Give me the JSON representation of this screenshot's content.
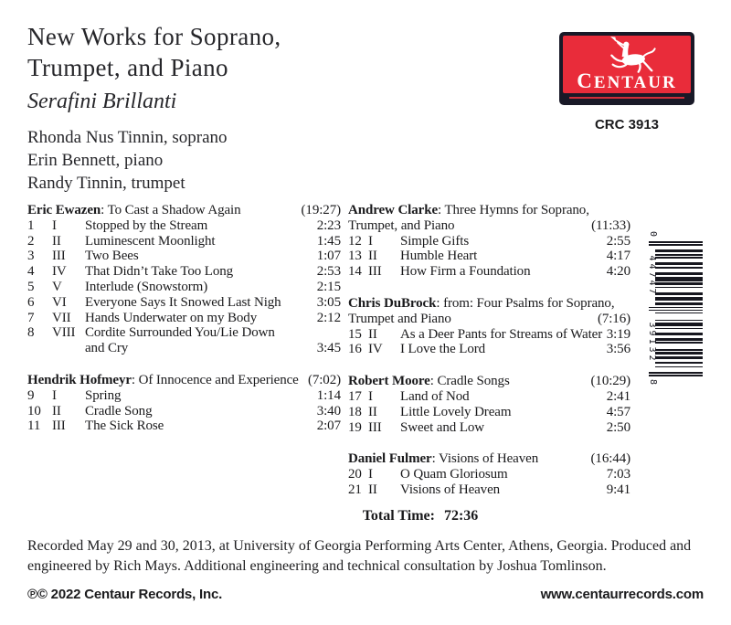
{
  "header": {
    "title_lines": [
      "New Works for Soprano,",
      "Trumpet, and Piano"
    ],
    "artist": "Serafini Brillanti",
    "performers": [
      "Rhonda Nus Tinnin, soprano",
      "Erin Bennett, piano",
      "Randy Tinnin, trumpet"
    ]
  },
  "label": {
    "wordmark": "CENTAUR",
    "catalog_number": "CRC 3913",
    "brand_red": "#e92c3a",
    "brand_navy": "#191927"
  },
  "barcode": {
    "digits": "044747391328",
    "left_digit": "0",
    "group1": "44747",
    "group2": "39132",
    "right_digit": "8"
  },
  "works": {
    "left": [
      {
        "composer": "Eric Ewazen",
        "title_rest": ": To Cast a Shadow Again",
        "title_line2": null,
        "duration": "(19:27)",
        "tracks": [
          {
            "n": "1",
            "m": "I",
            "t": "Stopped by the Stream",
            "d": "2:23"
          },
          {
            "n": "2",
            "m": "II",
            "t": "Luminescent Moonlight",
            "d": "1:45"
          },
          {
            "n": "3",
            "m": "III",
            "t": "Two Bees",
            "d": "1:07"
          },
          {
            "n": "4",
            "m": "IV",
            "t": "That Didn’t Take Too Long",
            "d": "2:53"
          },
          {
            "n": "5",
            "m": "V",
            "t": "Interlude (Snowstorm)",
            "d": "2:15"
          },
          {
            "n": "6",
            "m": "VI",
            "t": "Everyone Says It Snowed Last Nigh",
            "d": "3:05"
          },
          {
            "n": "7",
            "m": "VII",
            "t": "Hands Underwater on my Body",
            "d": "2:12"
          },
          {
            "n": "8",
            "m": "VIII",
            "t": "Cordite Surrounded You/Lie Down",
            "t2": "and Cry",
            "d": "3:45"
          }
        ]
      },
      {
        "composer": "Hendrik Hofmeyr",
        "title_rest": ": Of Innocence and Experience",
        "title_line2": null,
        "duration": "(7:02)",
        "tracks": [
          {
            "n": "9",
            "m": "I",
            "t": "Spring",
            "d": "1:14"
          },
          {
            "n": "10",
            "m": "II",
            "t": "Cradle Song",
            "d": "3:40"
          },
          {
            "n": "11",
            "m": "III",
            "t": "The Sick Rose",
            "d": "2:07"
          }
        ]
      }
    ],
    "right": [
      {
        "composer": "Andrew Clarke",
        "title_rest": ": Three Hymns for Soprano,",
        "title_line2": "Trumpet, and Piano",
        "duration": "(11:33)",
        "tracks": [
          {
            "n": "12",
            "m": "I",
            "t": "Simple Gifts",
            "d": "2:55"
          },
          {
            "n": "13",
            "m": "II",
            "t": "Humble Heart",
            "d": "4:17"
          },
          {
            "n": "14",
            "m": "III",
            "t": "How Firm a Foundation",
            "d": "4:20"
          }
        ]
      },
      {
        "composer": "Chris DuBrock",
        "title_rest": ": from: Four Psalms for Soprano,",
        "title_line2": "Trumpet and Piano",
        "duration": "(7:16)",
        "tracks": [
          {
            "n": "15",
            "m": "II",
            "t": "As a Deer Pants for Streams of Water",
            "d": "3:19"
          },
          {
            "n": "16",
            "m": "IV",
            "t": "I Love the Lord",
            "d": "3:56"
          }
        ]
      },
      {
        "composer": "Robert Moore",
        "title_rest": ": Cradle Songs",
        "title_line2": null,
        "duration": "(10:29)",
        "tracks": [
          {
            "n": "17",
            "m": "I",
            "t": "Land of Nod",
            "d": "2:41"
          },
          {
            "n": "18",
            "m": "II",
            "t": "Little Lovely Dream",
            "d": "4:57"
          },
          {
            "n": "19",
            "m": "III",
            "t": "Sweet and Low",
            "d": "2:50"
          }
        ]
      },
      {
        "composer": "Daniel Fulmer",
        "title_rest": ": Visions of Heaven",
        "title_line2": null,
        "duration": "(16:44)",
        "tracks": [
          {
            "n": "20",
            "m": "I",
            "t": "O Quam Gloriosum",
            "d": "7:03"
          },
          {
            "n": "21",
            "m": "II",
            "t": "Visions of Heaven",
            "d": "9:41"
          }
        ]
      }
    ]
  },
  "total_time": {
    "label": "Total Time:",
    "value": "72:36"
  },
  "credits": "Recorded May 29 and 30, 2013, at University of Georgia Performing Arts Center, Athens, Georgia. Produced and engineered by Rich Mays. Additional engineering and technical consultation by Joshua Tomlinson.",
  "footer": {
    "copyright": "℗© 2022 Centaur Records, Inc.",
    "website": "www.centaurrecords.com"
  }
}
